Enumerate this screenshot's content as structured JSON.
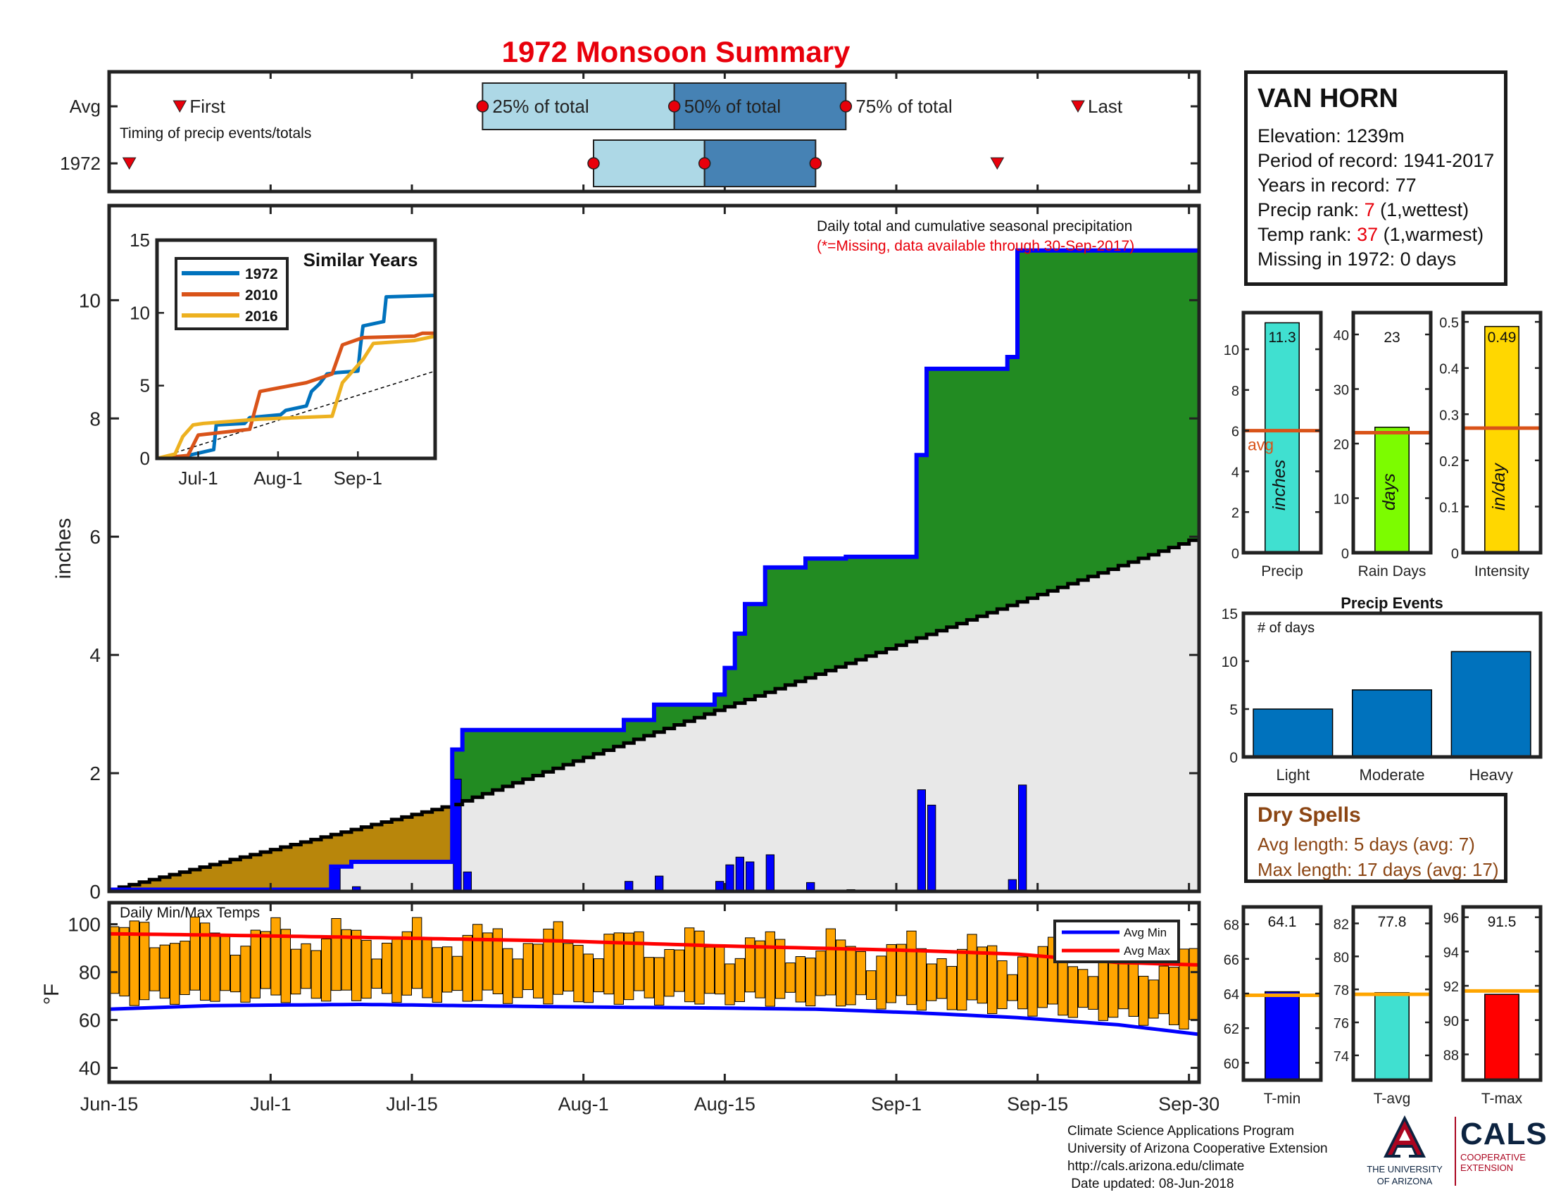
{
  "page": {
    "title": "1972 Monsoon Summary"
  },
  "station": {
    "name": "VAN HORN",
    "elevation_label": "Elevation:",
    "elevation": "1239m",
    "period_label": "Period of record:",
    "period": "1941-2017",
    "years_label": "Years in record:",
    "years": "77",
    "precip_rank_label": "Precip rank:",
    "precip_rank": "7",
    "precip_rank_note": "(1,wettest)",
    "temp_rank_label": "Temp rank:",
    "temp_rank": "37",
    "temp_rank_note": "(1,warmest)",
    "missing_label": "Missing in 1972:",
    "missing": "0 days"
  },
  "dry_spells": {
    "title": "Dry Spells",
    "avg_label": "Avg length:",
    "avg_value": "5 days (avg: 7)",
    "max_label": "Max length:",
    "max_value": "17 days (avg: 17)"
  },
  "credits": {
    "line1": "Climate Science Applications Program",
    "line2": "University of Arizona Cooperative Extension",
    "line3": "http://cals.arizona.edu/climate",
    "line4": " Date updated: 08-Jun-2018"
  },
  "logos": {
    "ua_caption1": "THE UNIVERSITY",
    "ua_caption2": "OF ARIZONA",
    "cals": "CALS",
    "cals_caption1": "COOPERATIVE",
    "cals_caption2": "EXTENSION",
    "colors": {
      "navy": "#0c2340",
      "cardinal": "#ab0520"
    }
  },
  "chart_data": [
    {
      "id": "timing",
      "type": "bar",
      "rows": [
        "Avg",
        "1972"
      ],
      "annotation": "Timing of precip events/totals",
      "avg": {
        "first": 7,
        "q25": 37,
        "q50": 56,
        "q75": 73,
        "last": 96
      },
      "year": {
        "first": 2,
        "q25": 48,
        "q50": 59,
        "q75": 70,
        "last": 88
      },
      "labels": {
        "first": "First",
        "q25": "25% of total",
        "q50": "50% of total",
        "q75": "75% of total",
        "last": "Last"
      },
      "xlim": [
        0,
        108
      ],
      "colors": {
        "early": "#add8e6",
        "late": "#4682b4",
        "marker": "#e8000b"
      }
    },
    {
      "id": "precip",
      "type": "area",
      "ylabel": "inches",
      "ylim": [
        0,
        11.6
      ],
      "yticks": [
        0,
        2,
        4,
        6,
        8,
        10
      ],
      "xlim": [
        0,
        108
      ],
      "xticks": [
        0,
        16,
        30,
        47,
        61,
        78,
        92,
        107
      ],
      "xtick_labels": [
        "Jun-15",
        "Jul-1",
        "Jul-15",
        "Aug-1",
        "Aug-15",
        "Sep-1",
        "Sep-15",
        "Sep-30"
      ],
      "title": "Daily total and cumulative seasonal precipitation",
      "subtitle": "(*=Missing, data available through 30-Sep-2017)",
      "avg_cumulative": {
        "start": 0.03,
        "knee_day": 34,
        "knee_value": 1.47,
        "end": 6.0
      },
      "daily": [
        [
          22,
          0.39
        ],
        [
          24,
          0.08
        ],
        [
          34,
          1.9
        ],
        [
          35,
          0.33
        ],
        [
          51,
          0.17
        ],
        [
          54,
          0.26
        ],
        [
          60,
          0.17
        ],
        [
          61,
          0.45
        ],
        [
          62,
          0.58
        ],
        [
          63,
          0.5
        ],
        [
          65,
          0.62
        ],
        [
          69,
          0.15
        ],
        [
          73,
          0.03
        ],
        [
          80,
          1.72
        ],
        [
          81,
          1.46
        ],
        [
          89,
          0.2
        ],
        [
          90,
          1.8
        ]
      ],
      "colors": {
        "above": "#228b22",
        "below": "#b8860b",
        "baseline": "#e8e8e8",
        "cumulative": "#0000ff",
        "daily": "#0000ff",
        "avg": "#000000"
      }
    },
    {
      "id": "similar_years",
      "type": "line",
      "title": "Similar Years",
      "ylim": [
        0,
        15
      ],
      "yticks": [
        0,
        5,
        10,
        15
      ],
      "xlim": [
        0,
        108
      ],
      "xticks": [
        16,
        47,
        78
      ],
      "xtick_labels": [
        "Jul-1",
        "Aug-1",
        "Sep-1"
      ],
      "series": [
        {
          "name": "1972",
          "color": "#0072bd",
          "points": [
            [
              0,
              0
            ],
            [
              10,
              0
            ],
            [
              12,
              0.2
            ],
            [
              22,
              0.6
            ],
            [
              23,
              2.3
            ],
            [
              34,
              2.4
            ],
            [
              36,
              2.8
            ],
            [
              48,
              3.0
            ],
            [
              50,
              3.3
            ],
            [
              58,
              3.6
            ],
            [
              60,
              4.6
            ],
            [
              63,
              5.1
            ],
            [
              66,
              5.8
            ],
            [
              70,
              5.9
            ],
            [
              78,
              6.0
            ],
            [
              79,
              7.7
            ],
            [
              80,
              9.1
            ],
            [
              88,
              9.4
            ],
            [
              89,
              11.1
            ],
            [
              108,
              11.2
            ]
          ]
        },
        {
          "name": "2010",
          "color": "#d95319",
          "points": [
            [
              0,
              0
            ],
            [
              12,
              0.2
            ],
            [
              16,
              1.6
            ],
            [
              36,
              2.0
            ],
            [
              40,
              4.6
            ],
            [
              58,
              5.2
            ],
            [
              68,
              5.8
            ],
            [
              72,
              7.8
            ],
            [
              80,
              8.3
            ],
            [
              100,
              8.4
            ],
            [
              103,
              8.6
            ],
            [
              108,
              8.6
            ]
          ]
        },
        {
          "name": "2016",
          "color": "#edb120",
          "points": [
            [
              0,
              0
            ],
            [
              7,
              0.3
            ],
            [
              10,
              1.5
            ],
            [
              14,
              2.3
            ],
            [
              18,
              2.4
            ],
            [
              40,
              2.7
            ],
            [
              68,
              2.9
            ],
            [
              72,
              5.2
            ],
            [
              80,
              6.8
            ],
            [
              84,
              7.9
            ],
            [
              100,
              8.1
            ],
            [
              108,
              8.4
            ]
          ]
        }
      ],
      "avg_line": {
        "color": "#000000",
        "start": 0.0,
        "end": 6.0
      }
    },
    {
      "id": "temps",
      "type": "bar",
      "title": "Daily Min/Max Temps",
      "ylabel": "°F",
      "ylim": [
        34,
        109
      ],
      "yticks": [
        40,
        60,
        80,
        100
      ],
      "xlim": [
        0,
        108
      ],
      "legend": [
        "Avg Min",
        "Avg Max"
      ],
      "legend_position": "top-right",
      "avg_min": [
        [
          0,
          64.5
        ],
        [
          10,
          66
        ],
        [
          25,
          66.5
        ],
        [
          45,
          65.5
        ],
        [
          60,
          65
        ],
        [
          70,
          64.5
        ],
        [
          80,
          63
        ],
        [
          90,
          61
        ],
        [
          100,
          58
        ],
        [
          108,
          54
        ]
      ],
      "avg_max": [
        [
          0,
          96
        ],
        [
          10,
          95.5
        ],
        [
          25,
          94.5
        ],
        [
          45,
          93
        ],
        [
          60,
          91
        ],
        [
          70,
          90
        ],
        [
          80,
          89
        ],
        [
          90,
          87.5
        ],
        [
          100,
          84
        ],
        [
          108,
          83
        ]
      ],
      "colors": {
        "bars": "#ffa500",
        "avg_min": "#0000ff",
        "avg_max": "#ff0000"
      }
    },
    {
      "id": "precip_total",
      "type": "bar",
      "xlabel": "Precip",
      "unit": "inches",
      "value": 11.3,
      "value_label": "11.3",
      "avg": 6.0,
      "avg_label": "avg",
      "ylim": [
        0,
        11.8
      ],
      "yticks": [
        0,
        2,
        4,
        6,
        8,
        10
      ],
      "color": "#40e0d0"
    },
    {
      "id": "rain_days",
      "type": "bar",
      "xlabel": "Rain Days",
      "unit": "days",
      "value": 23,
      "value_label": "23",
      "avg": 22,
      "ylim": [
        0,
        44
      ],
      "yticks": [
        0,
        10,
        20,
        30,
        40
      ],
      "color": "#7cfc00"
    },
    {
      "id": "intensity",
      "type": "bar",
      "xlabel": "Intensity",
      "unit": "in/day",
      "value": 0.49,
      "value_label": "0.49",
      "avg": 0.27,
      "ylim": [
        0,
        0.52
      ],
      "yticks": [
        0,
        0.1,
        0.2,
        0.3,
        0.4,
        0.5
      ],
      "ytick_labels": [
        "0",
        "0.1",
        "0.2",
        "0.3",
        "0.4",
        "0.5"
      ],
      "color": "#ffd700"
    },
    {
      "id": "precip_events",
      "type": "bar",
      "title": "Precip Events",
      "ylabel": "# of days",
      "categories": [
        "Light",
        "Moderate",
        "Heavy"
      ],
      "values": [
        5,
        7,
        11
      ],
      "ylim": [
        0,
        15
      ],
      "yticks": [
        0,
        5,
        10,
        15
      ],
      "color": "#0072bd"
    },
    {
      "id": "t_min",
      "type": "bar",
      "xlabel": "T-min",
      "value": 64.1,
      "value_label": "64.1",
      "avg": 63.9,
      "ylim": [
        59,
        69
      ],
      "yticks": [
        60,
        62,
        64,
        66,
        68
      ],
      "color": "#0000ff"
    },
    {
      "id": "t_avg",
      "type": "bar",
      "xlabel": "T-avg",
      "value": 77.8,
      "value_label": "77.8",
      "avg": 77.7,
      "ylim": [
        72.5,
        83
      ],
      "yticks": [
        74,
        76,
        78,
        80,
        82
      ],
      "color": "#40e0d0"
    },
    {
      "id": "t_max",
      "type": "bar",
      "xlabel": "T-max",
      "value": 91.5,
      "value_label": "91.5",
      "avg": 91.7,
      "ylim": [
        86.5,
        96.6
      ],
      "yticks": [
        88,
        90,
        92,
        94,
        96
      ],
      "color": "#ff0000"
    }
  ]
}
